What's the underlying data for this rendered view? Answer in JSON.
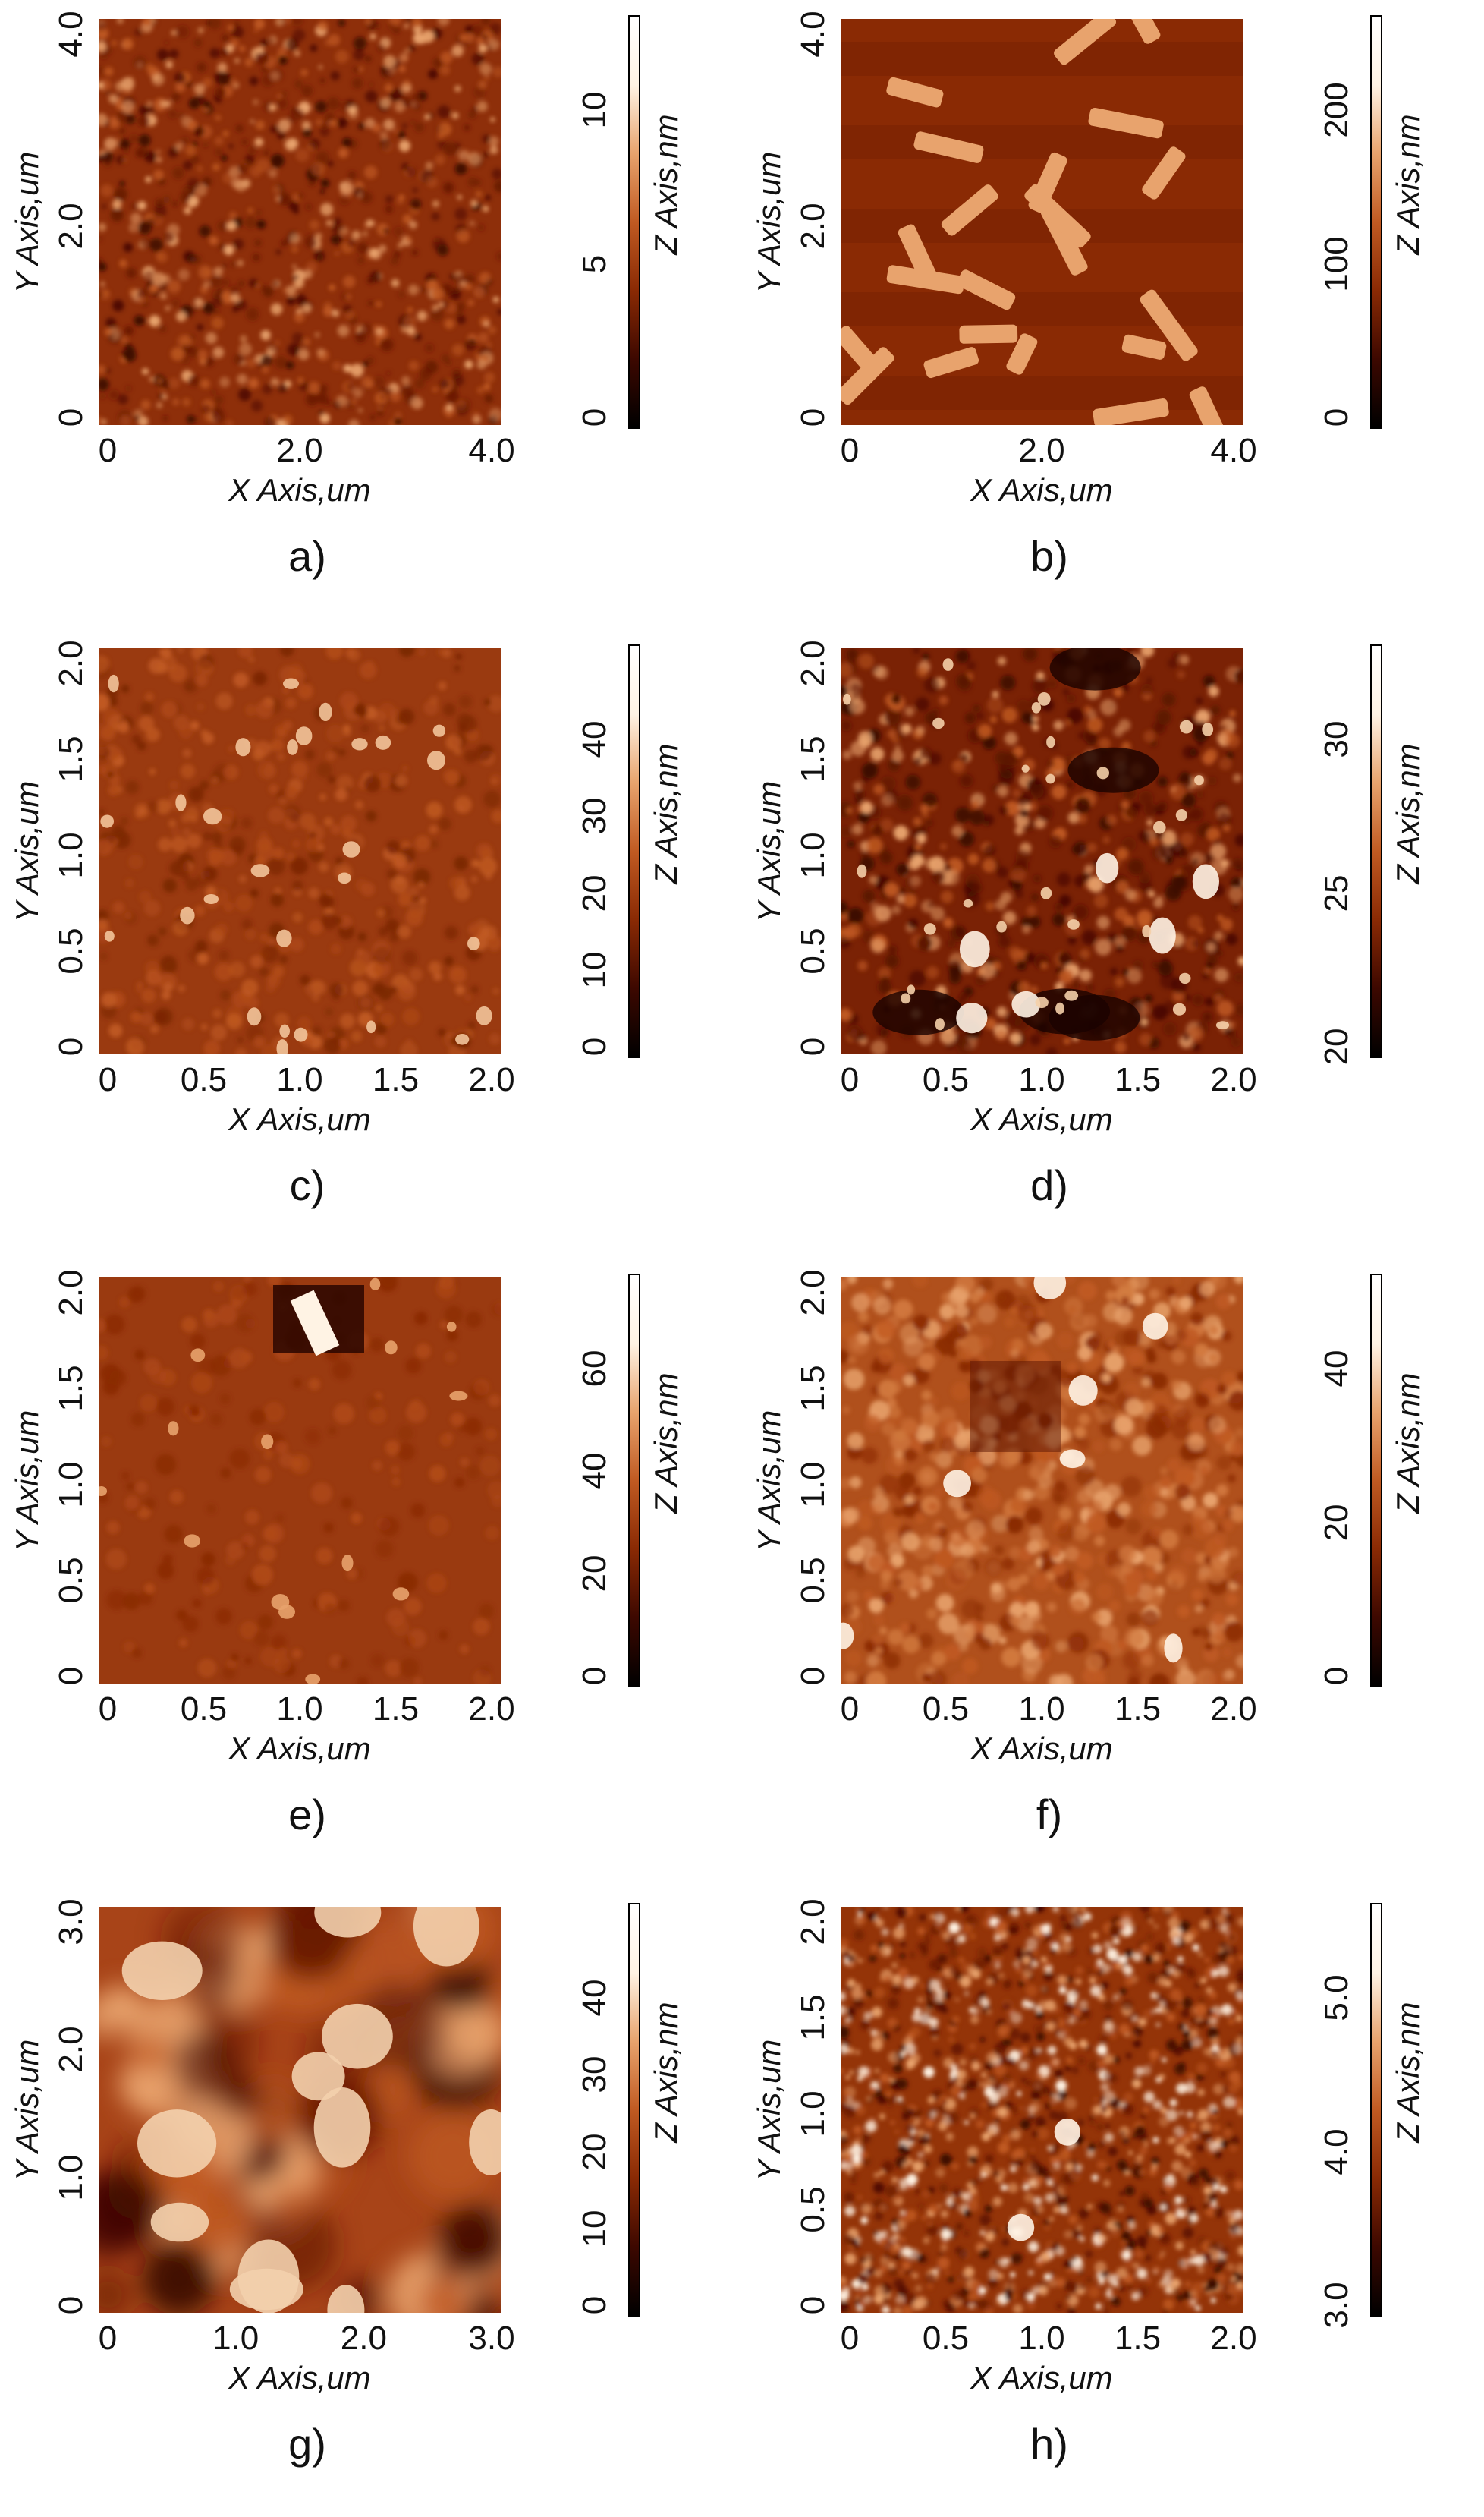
{
  "x_axis_title": "X Axis,um",
  "y_axis_title": "Y Axis,um",
  "z_axis_title": "Z Axis,nm",
  "colors": {
    "colormap": [
      "#000000",
      "#3d0800",
      "#8a2a04",
      "#c05a22",
      "#e8a36d",
      "#fff3e4",
      "#ffffff"
    ],
    "base_tone": "#9e3a0f"
  },
  "panels": [
    {
      "label": "a)",
      "x_ticks": [
        "0",
        "2.0",
        "4.0"
      ],
      "y_ticks": [
        "0",
        "2.0",
        "4.0"
      ],
      "z_ticks": [
        "0",
        "5",
        "10"
      ],
      "texture": "fine-granular"
    },
    {
      "label": "b)",
      "x_ticks": [
        "0",
        "2.0",
        "4.0"
      ],
      "y_ticks": [
        "0",
        "2.0",
        "4.0"
      ],
      "z_ticks": [
        "0",
        "100",
        "200"
      ],
      "texture": "elongated-crystals"
    },
    {
      "label": "c)",
      "x_ticks": [
        "0",
        "0.5",
        "1.0",
        "1.5",
        "2.0"
      ],
      "y_ticks": [
        "0",
        "0.5",
        "1.0",
        "1.5",
        "2.0"
      ],
      "z_ticks": [
        "0",
        "10",
        "20",
        "30",
        "40"
      ],
      "texture": "sparse-grains"
    },
    {
      "label": "d)",
      "x_ticks": [
        "0",
        "0.5",
        "1.0",
        "1.5",
        "2.0"
      ],
      "y_ticks": [
        "0",
        "0.5",
        "1.0",
        "1.5",
        "2.0"
      ],
      "z_ticks": [
        "20",
        "25",
        "30"
      ],
      "texture": "dark-pits-bright-blobs"
    },
    {
      "label": "e)",
      "x_ticks": [
        "0",
        "0.5",
        "1.0",
        "1.5",
        "2.0"
      ],
      "y_ticks": [
        "0",
        "0.5",
        "1.0",
        "1.5",
        "2.0"
      ],
      "z_ticks": [
        "0",
        "20",
        "40",
        "60"
      ],
      "texture": "smooth-with-defects"
    },
    {
      "label": "f)",
      "x_ticks": [
        "0",
        "0.5",
        "1.0",
        "1.5",
        "2.0"
      ],
      "y_ticks": [
        "0",
        "0.5",
        "1.0",
        "1.5",
        "2.0"
      ],
      "z_ticks": [
        "0",
        "20",
        "40"
      ],
      "texture": "bright-mottled"
    },
    {
      "label": "g)",
      "x_ticks": [
        "0",
        "1.0",
        "2.0",
        "3.0"
      ],
      "y_ticks": [
        "0",
        "1.0",
        "2.0",
        "3.0"
      ],
      "z_ticks": [
        "0",
        "10",
        "20",
        "30",
        "40"
      ],
      "texture": "large-blobs"
    },
    {
      "label": "h)",
      "x_ticks": [
        "0",
        "0.5",
        "1.0",
        "1.5",
        "2.0"
      ],
      "y_ticks": [
        "0",
        "0.5",
        "1.0",
        "1.5",
        "2.0"
      ],
      "z_ticks": [
        "3.0",
        "4.0",
        "5.0"
      ],
      "texture": "dense-speckle"
    }
  ]
}
